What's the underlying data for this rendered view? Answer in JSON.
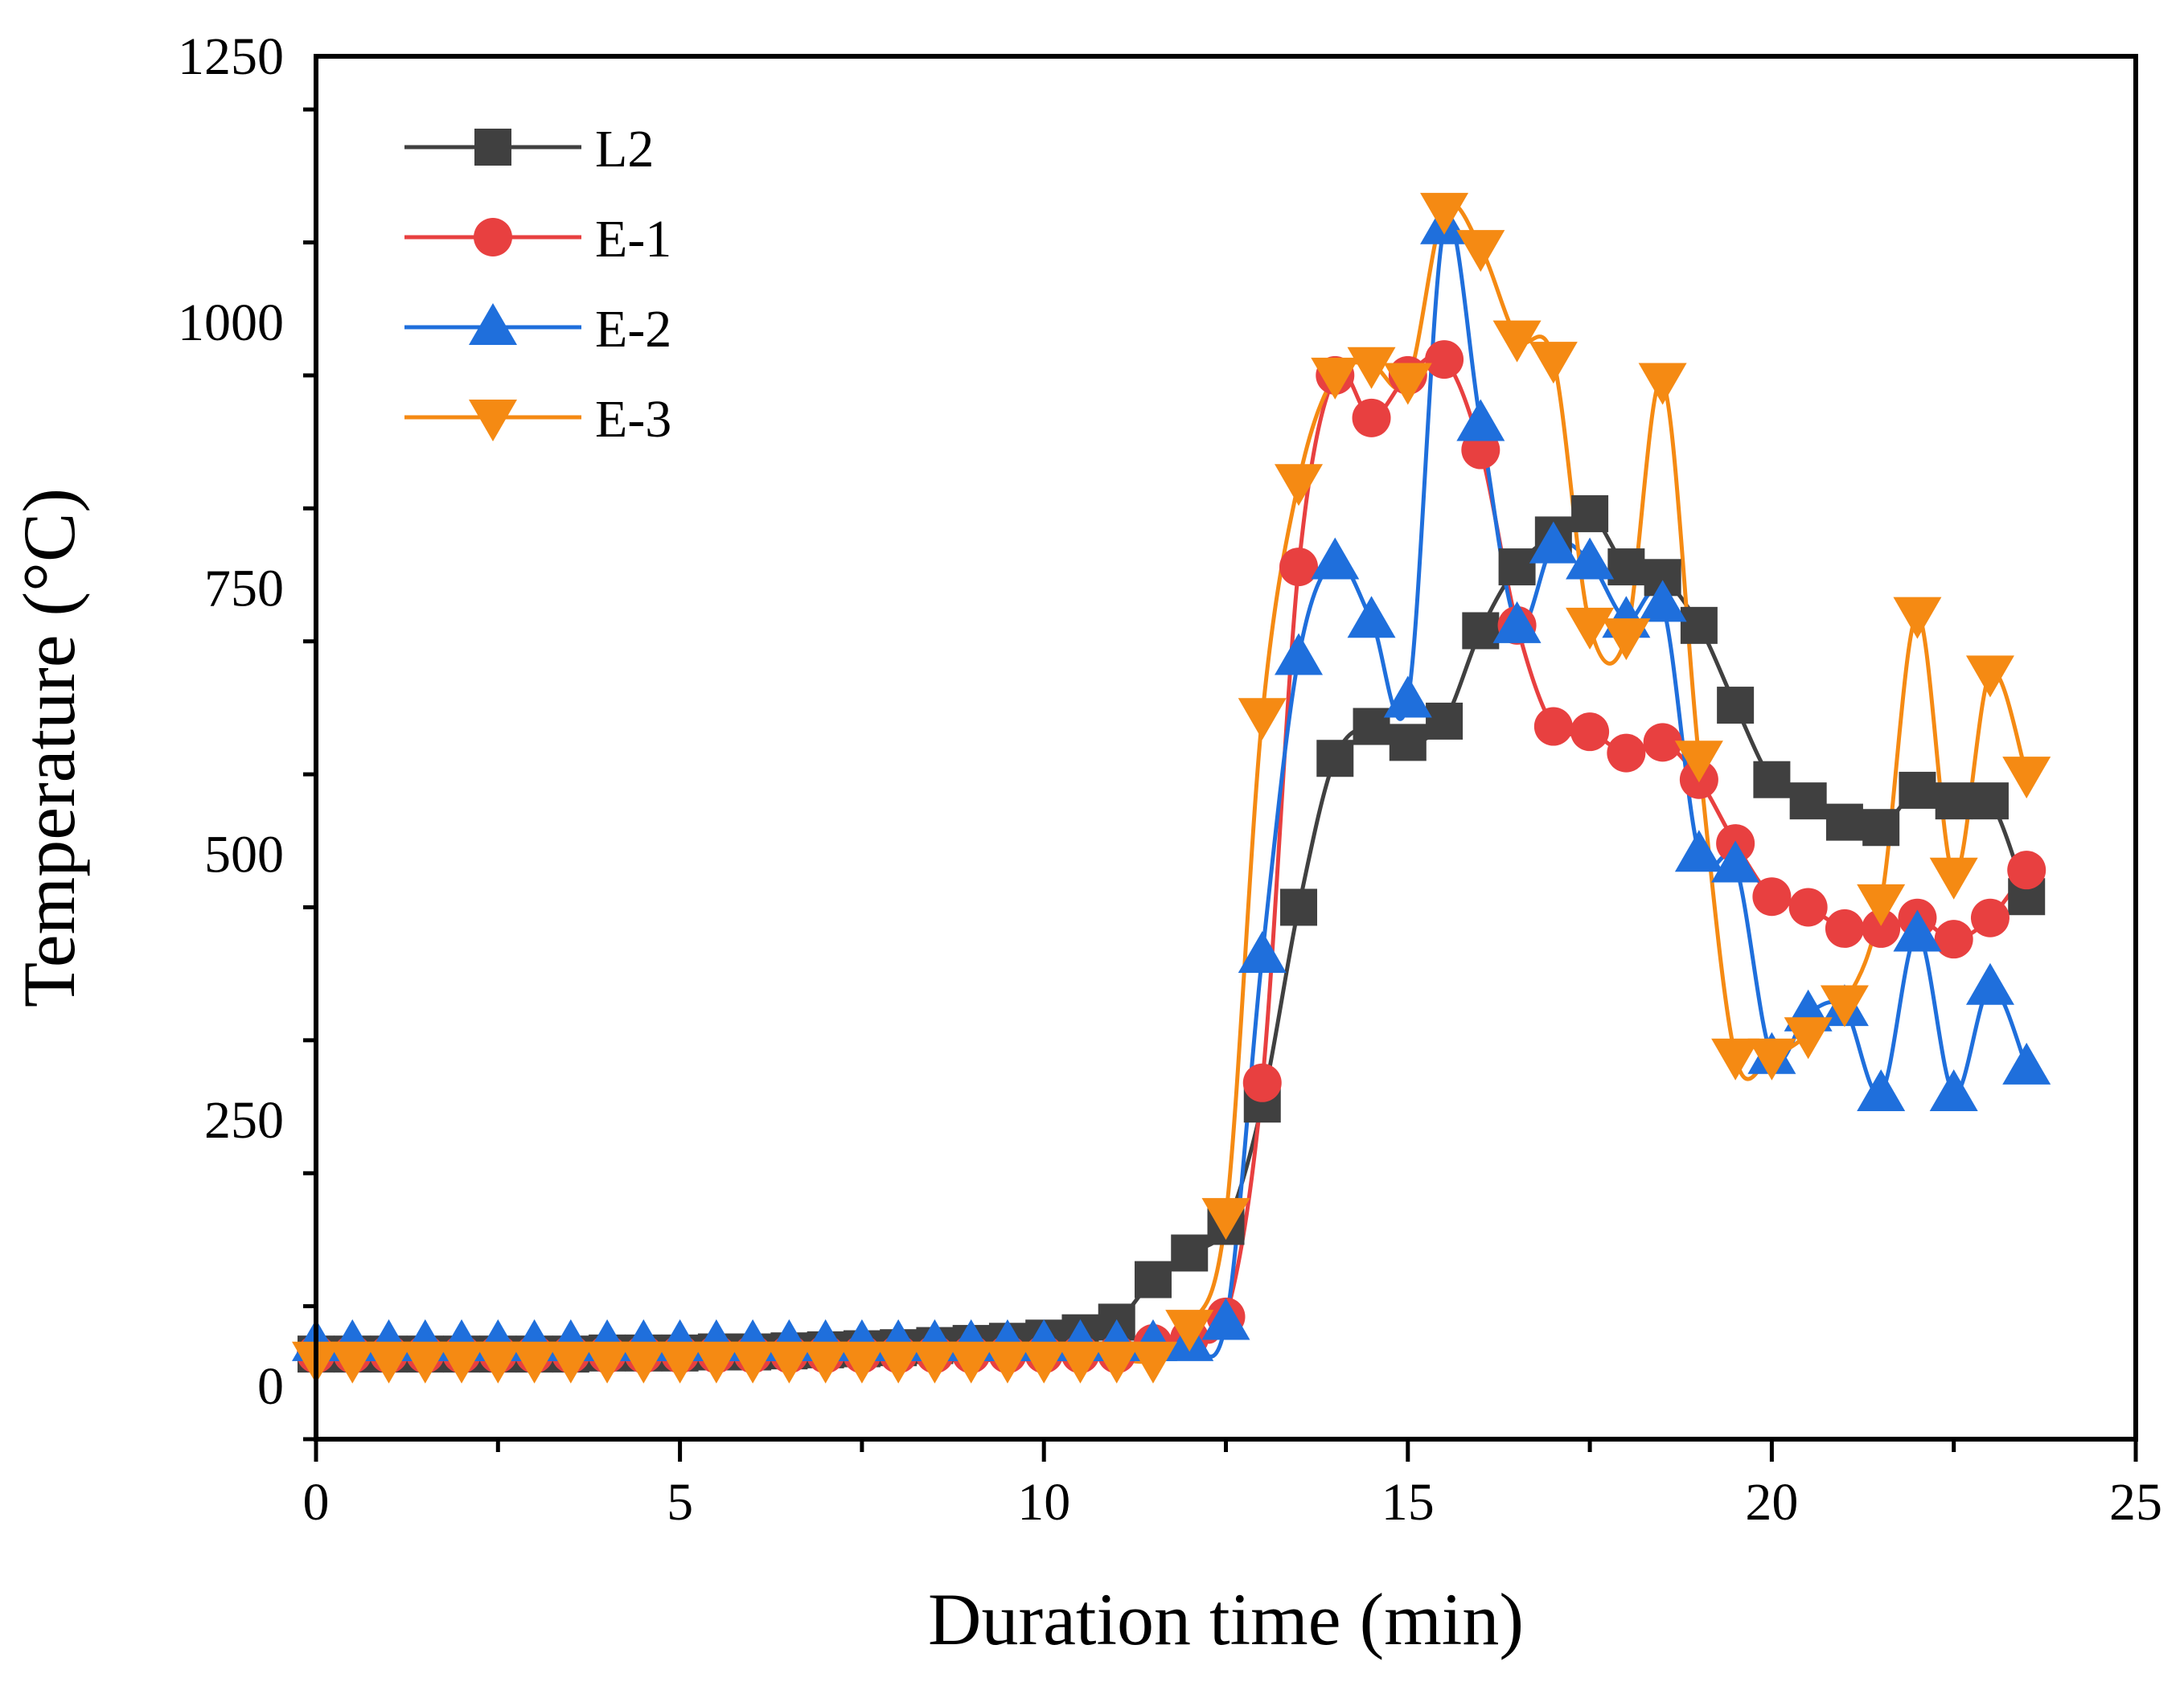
{
  "chart_data": {
    "type": "line",
    "title": "",
    "xlabel": "Duration time (min)",
    "ylabel": "Temperature (°C)",
    "xlim": [
      0,
      25
    ],
    "ylim": [
      -50,
      1250
    ],
    "x_ticks": [
      0,
      5,
      10,
      15,
      20,
      25
    ],
    "y_ticks": [
      0,
      250,
      500,
      750,
      1000,
      1250
    ],
    "grid": false,
    "legend_position": "top-left",
    "series": [
      {
        "name": "L2",
        "color": "#404040",
        "marker": "square",
        "x": [
          0,
          0.5,
          1,
          1.5,
          2,
          2.5,
          3,
          3.5,
          4,
          4.5,
          5,
          5.5,
          6,
          6.5,
          7,
          7.5,
          8,
          8.5,
          9,
          9.5,
          10,
          10.5,
          11,
          11.5,
          12,
          12.5,
          13,
          13.5,
          14,
          14.5,
          15,
          15.5,
          16,
          16.5,
          17,
          17.5,
          18,
          18.5,
          19,
          19.5,
          20,
          20.5,
          21,
          21.5,
          22,
          22.5,
          23,
          23.5
        ],
        "y": [
          30,
          30,
          30,
          30,
          30,
          30,
          30,
          30,
          31,
          31,
          31,
          32,
          32,
          33,
          34,
          35,
          36,
          38,
          40,
          42,
          45,
          50,
          60,
          100,
          125,
          150,
          265,
          450,
          590,
          620,
          605,
          625,
          710,
          770,
          800,
          820,
          770,
          760,
          715,
          640,
          570,
          550,
          530,
          525,
          560,
          550,
          550,
          460
        ]
      },
      {
        "name": "E-1",
        "color": "#e84040",
        "marker": "circle",
        "x": [
          0,
          0.5,
          1,
          1.5,
          2,
          2.5,
          3,
          3.5,
          4,
          4.5,
          5,
          5.5,
          6,
          6.5,
          7,
          7.5,
          8,
          8.5,
          9,
          9.5,
          10,
          10.5,
          11,
          11.5,
          12,
          12.5,
          13,
          13.5,
          14,
          14.5,
          15,
          15.5,
          16,
          16.5,
          17,
          17.5,
          18,
          18.5,
          19,
          19.5,
          20,
          20.5,
          21,
          21.5,
          22,
          22.5,
          23,
          23.5
        ],
        "y": [
          30,
          30,
          30,
          30,
          30,
          30,
          30,
          30,
          30,
          30,
          30,
          30,
          30,
          30,
          30,
          30,
          30,
          30,
          30,
          30,
          30,
          30,
          30,
          40,
          45,
          65,
          285,
          770,
          950,
          910,
          950,
          965,
          880,
          715,
          620,
          615,
          595,
          605,
          570,
          510,
          460,
          450,
          430,
          430,
          440,
          420,
          440,
          485
        ]
      },
      {
        "name": "E-2",
        "color": "#1f6fdc",
        "marker": "triangle-up",
        "x": [
          0,
          0.5,
          1,
          1.5,
          2,
          2.5,
          3,
          3.5,
          4,
          4.5,
          5,
          5.5,
          6,
          6.5,
          7,
          7.5,
          8,
          8.5,
          9,
          9.5,
          10,
          10.5,
          11,
          11.5,
          12,
          12.5,
          13,
          13.5,
          14,
          14.5,
          15,
          15.5,
          16,
          16.5,
          17,
          17.5,
          18,
          18.5,
          19,
          19.5,
          20,
          20.5,
          21,
          21.5,
          22,
          22.5,
          23,
          23.5
        ],
        "y": [
          40,
          40,
          40,
          40,
          40,
          40,
          40,
          40,
          40,
          40,
          40,
          40,
          40,
          40,
          40,
          40,
          40,
          40,
          40,
          40,
          40,
          40,
          40,
          40,
          40,
          60,
          405,
          685,
          775,
          720,
          645,
          1090,
          905,
          715,
          790,
          775,
          720,
          735,
          500,
          490,
          310,
          350,
          355,
          275,
          425,
          275,
          375,
          300
        ]
      },
      {
        "name": "E-3",
        "color": "#f58a13",
        "marker": "triangle-down",
        "x": [
          0,
          0.5,
          1,
          1.5,
          2,
          2.5,
          3,
          3.5,
          4,
          4.5,
          5,
          5.5,
          6,
          6.5,
          7,
          7.5,
          8,
          8.5,
          9,
          9.5,
          10,
          10.5,
          11,
          11.5,
          12,
          12.5,
          13,
          13.5,
          14,
          14.5,
          15,
          15.5,
          16,
          16.5,
          17,
          17.5,
          18,
          18.5,
          19,
          19.5,
          20,
          20.5,
          21,
          21.5,
          22,
          22.5,
          23,
          23.5
        ],
        "y": [
          25,
          25,
          25,
          25,
          25,
          25,
          25,
          25,
          25,
          25,
          25,
          25,
          25,
          25,
          25,
          25,
          25,
          25,
          25,
          25,
          25,
          25,
          25,
          25,
          55,
          160,
          630,
          850,
          950,
          960,
          945,
          1105,
          1070,
          985,
          965,
          715,
          705,
          945,
          590,
          310,
          310,
          330,
          360,
          455,
          725,
          480,
          670,
          575
        ]
      }
    ]
  }
}
